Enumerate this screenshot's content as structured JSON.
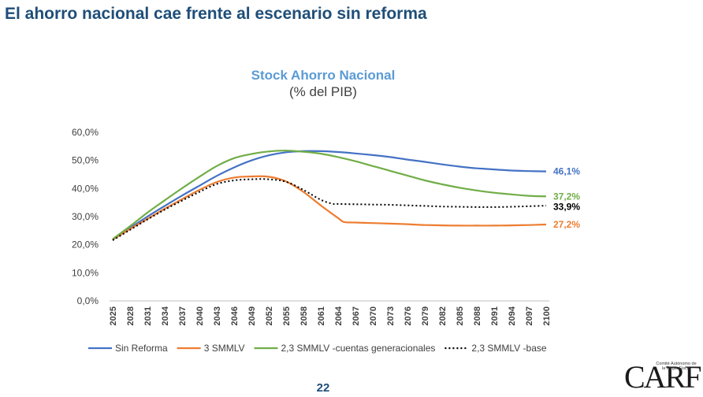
{
  "slide": {
    "title": "El ahorro nacional cae frente al escenario sin reforma",
    "page_number": "22",
    "logo": {
      "text": "CARF",
      "subtitle": "Comité Autónomo de la Regla Fiscal"
    }
  },
  "chart_data": {
    "type": "line",
    "title": "Stock Ahorro Nacional",
    "subtitle": "(% del PIB)",
    "xlabel": "",
    "ylabel": "",
    "ylim": [
      0,
      60
    ],
    "y_ticks": [
      "0,0%",
      "10,0%",
      "20,0%",
      "30,0%",
      "40,0%",
      "50,0%",
      "60,0%"
    ],
    "y_tick_values": [
      0,
      10,
      20,
      30,
      40,
      50,
      60
    ],
    "x_labels": [
      "2025",
      "2028",
      "2031",
      "2034",
      "2037",
      "2040",
      "2043",
      "2046",
      "2049",
      "2052",
      "2055",
      "2058",
      "2061",
      "2064",
      "2067",
      "2070",
      "2073",
      "2076",
      "2079",
      "2082",
      "2085",
      "2088",
      "2091",
      "2094",
      "2097",
      "2100"
    ],
    "x_tick_values": [
      2025,
      2028,
      2031,
      2034,
      2037,
      2040,
      2043,
      2046,
      2049,
      2052,
      2055,
      2058,
      2061,
      2064,
      2067,
      2070,
      2073,
      2076,
      2079,
      2082,
      2085,
      2088,
      2091,
      2094,
      2097,
      2100
    ],
    "xlim": [
      2025,
      2100
    ],
    "legend_position": "bottom",
    "grid": false,
    "series": [
      {
        "name": "Sin Reforma",
        "color": "#4472C4",
        "dash": "solid",
        "end_label": "46,1%",
        "x": [
          2025,
          2028,
          2031,
          2034,
          2037,
          2040,
          2043,
          2046,
          2049,
          2052,
          2055,
          2058,
          2061,
          2064,
          2067,
          2070,
          2073,
          2076,
          2079,
          2082,
          2085,
          2088,
          2091,
          2094,
          2097,
          2100
        ],
        "y": [
          21.8,
          26.0,
          30.0,
          33.8,
          37.5,
          41.0,
          44.5,
          47.5,
          50.0,
          51.8,
          52.9,
          53.3,
          53.3,
          53.0,
          52.5,
          51.9,
          51.2,
          50.3,
          49.5,
          48.6,
          47.8,
          47.2,
          46.8,
          46.4,
          46.2,
          46.1
        ]
      },
      {
        "name": "3 SMMLV",
        "color": "#ED7D31",
        "dash": "solid",
        "end_label": "27,2%",
        "x": [
          2025,
          2028,
          2031,
          2034,
          2037,
          2040,
          2043,
          2046,
          2049,
          2052,
          2055,
          2058,
          2061,
          2064,
          2065,
          2067,
          2070,
          2073,
          2076,
          2079,
          2082,
          2085,
          2088,
          2091,
          2094,
          2097,
          2100
        ],
        "y": [
          21.8,
          25.6,
          29.2,
          32.8,
          36.2,
          39.5,
          42.3,
          43.9,
          44.3,
          44.2,
          42.5,
          38.8,
          34.0,
          29.5,
          28.1,
          27.9,
          27.7,
          27.5,
          27.3,
          27.0,
          26.9,
          26.8,
          26.8,
          26.8,
          26.9,
          27.0,
          27.2
        ]
      },
      {
        "name": "2,3 SMMLV -cuentas generacionales",
        "color": "#70AD47",
        "dash": "solid",
        "end_label": "37,2%",
        "x": [
          2025,
          2028,
          2031,
          2034,
          2037,
          2040,
          2043,
          2046,
          2049,
          2052,
          2055,
          2058,
          2061,
          2064,
          2067,
          2070,
          2073,
          2076,
          2079,
          2082,
          2085,
          2088,
          2091,
          2094,
          2097,
          2100
        ],
        "y": [
          22.0,
          26.6,
          31.4,
          35.8,
          40.1,
          44.2,
          48.0,
          50.8,
          52.3,
          53.2,
          53.5,
          53.1,
          52.4,
          51.2,
          49.7,
          48.0,
          46.3,
          44.6,
          42.9,
          41.5,
          40.3,
          39.3,
          38.5,
          37.9,
          37.4,
          37.2
        ]
      },
      {
        "name": "2,3 SMMLV -base",
        "color": "#000000",
        "dash": "dotted",
        "end_label": "33,9%",
        "x": [
          2025,
          2028,
          2031,
          2034,
          2037,
          2040,
          2043,
          2046,
          2049,
          2052,
          2055,
          2058,
          2061,
          2063,
          2064,
          2067,
          2070,
          2073,
          2076,
          2079,
          2082,
          2085,
          2088,
          2091,
          2094,
          2097,
          2100
        ],
        "y": [
          21.6,
          25.3,
          29.0,
          32.5,
          35.7,
          38.8,
          41.6,
          42.9,
          43.3,
          43.3,
          42.4,
          39.5,
          36.0,
          34.6,
          34.5,
          34.4,
          34.3,
          34.2,
          34.0,
          33.8,
          33.6,
          33.5,
          33.4,
          33.4,
          33.5,
          33.7,
          33.9
        ]
      }
    ]
  }
}
